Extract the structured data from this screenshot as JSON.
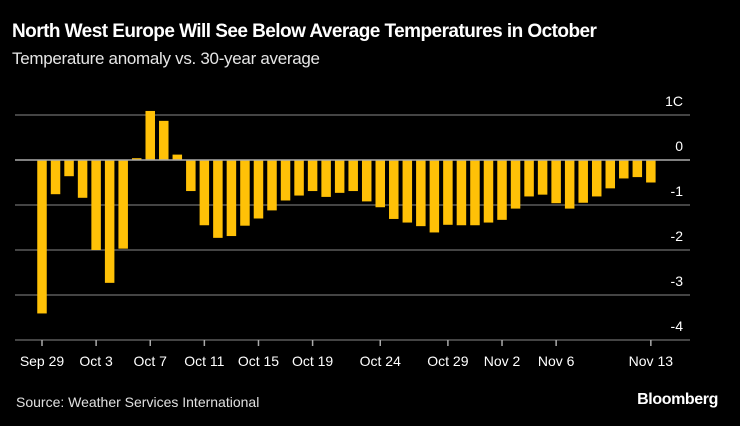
{
  "title": "North West Europe Will See Below Average Temperatures in October",
  "subtitle": "Temperature anomaly vs. 30-year average",
  "source": "Source: Weather Services International",
  "logo": "Bloomberg",
  "colors": {
    "bar": "#FFC107",
    "background": "#000000",
    "grid": "#5a5a5a",
    "zero_line": "#aaaaaa"
  },
  "chart_data": {
    "type": "bar",
    "title": "North West Europe Will See Below Average Temperatures in October",
    "subtitle": "Temperature anomaly vs. 30-year average",
    "xlabel": "",
    "ylabel": "",
    "ylim": [
      -4,
      1
    ],
    "yticks": [
      1,
      0,
      -1,
      -2,
      -3,
      -4
    ],
    "ytick_labels": [
      "1C",
      "0",
      "-1",
      "-2",
      "-3",
      "-4"
    ],
    "y_axis_position": "right",
    "grid": true,
    "xtick_labels": [
      {
        "label": "Sep 29",
        "date": "Sep 29"
      },
      {
        "label": "Oct 3",
        "date": "Oct 3"
      },
      {
        "label": "Oct 7",
        "date": "Oct 7"
      },
      {
        "label": "Oct 11",
        "date": "Oct 11"
      },
      {
        "label": "Oct 15",
        "date": "Oct 15"
      },
      {
        "label": "Oct 19",
        "date": "Oct 19"
      },
      {
        "label": "Oct 24",
        "date": "Oct 24"
      },
      {
        "label": "Oct 29",
        "date": "Oct 29"
      },
      {
        "label": "Nov 2",
        "date": "Nov 2"
      },
      {
        "label": "Nov 6",
        "date": "Nov 6"
      },
      {
        "label": "Nov 13",
        "date": "Nov 13"
      }
    ],
    "categories": [
      "Sep 29",
      "Sep 30",
      "Oct 1",
      "Oct 2",
      "Oct 3",
      "Oct 4",
      "Oct 5",
      "Oct 6",
      "Oct 7",
      "Oct 8",
      "Oct 9",
      "Oct 10",
      "Oct 11",
      "Oct 12",
      "Oct 13",
      "Oct 14",
      "Oct 15",
      "Oct 16",
      "Oct 17",
      "Oct 18",
      "Oct 19",
      "Oct 20",
      "Oct 21",
      "Oct 22",
      "Oct 23",
      "Oct 24",
      "Oct 25",
      "Oct 26",
      "Oct 27",
      "Oct 28",
      "Oct 29",
      "Oct 30",
      "Oct 31",
      "Nov 1",
      "Nov 2",
      "Nov 3",
      "Nov 4",
      "Nov 5",
      "Nov 6",
      "Nov 7",
      "Nov 8",
      "Nov 9",
      "Nov 10",
      "Nov 11",
      "Nov 12",
      "Nov 13"
    ],
    "values": [
      -3.41,
      -0.76,
      -0.36,
      -0.84,
      -2.0,
      -2.73,
      -1.97,
      0.04,
      1.09,
      0.87,
      0.12,
      -0.69,
      -1.45,
      -1.73,
      -1.69,
      -1.46,
      -1.3,
      -1.12,
      -0.9,
      -0.79,
      -0.69,
      -0.82,
      -0.73,
      -0.69,
      -0.92,
      -1.05,
      -1.31,
      -1.39,
      -1.47,
      -1.61,
      -1.44,
      -1.45,
      -1.45,
      -1.39,
      -1.33,
      -1.08,
      -0.81,
      -0.77,
      -0.96,
      -1.08,
      -0.95,
      -0.81,
      -0.63,
      -0.41,
      -0.38,
      -0.5
    ]
  }
}
